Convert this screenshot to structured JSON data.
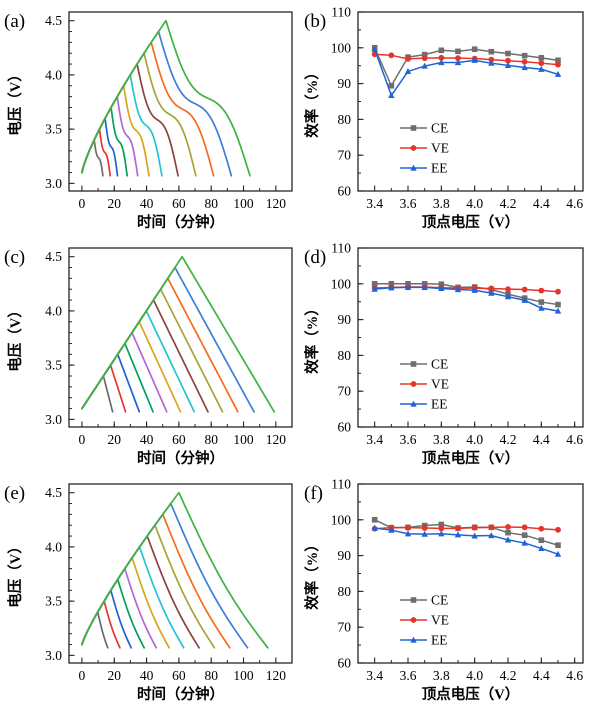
{
  "figure": {
    "background": "#ffffff",
    "spine_color": "#262626",
    "text_color": "#000000"
  },
  "chart_data": [
    {
      "id": "a",
      "type": "line",
      "kind": "voltage_time",
      "panel_label": "(a)",
      "xlabel": "时间（分钟）",
      "ylabel": "电压（V）",
      "xlim": [
        -8,
        130
      ],
      "ylim": [
        2.93,
        4.58
      ],
      "xticks": [
        0,
        20,
        40,
        60,
        80,
        100,
        120
      ],
      "xtick_labels": [
        "0",
        "20",
        "40",
        "60",
        "80",
        "100",
        "120"
      ],
      "yticks": [
        3.0,
        3.5,
        4.0,
        4.5
      ],
      "ytick_labels": [
        "3.0",
        "3.5",
        "4.0",
        "4.5"
      ],
      "x_minor_step": 10,
      "y_minor_step": 0.1,
      "start_voltage": 3.1,
      "cutoff_voltage": 3.07,
      "envelope": {
        "T": 52,
        "exp": 0.8
      },
      "discharge_shape": "s",
      "curves": [
        {
          "vertex": 3.4,
          "end_t": 13,
          "color": "#6b6b6b"
        },
        {
          "vertex": 3.5,
          "end_t": 17.5,
          "color": "#e5352b"
        },
        {
          "vertex": 3.6,
          "end_t": 22,
          "color": "#2261cf"
        },
        {
          "vertex": 3.7,
          "end_t": 28,
          "color": "#00a15d"
        },
        {
          "vertex": 3.8,
          "end_t": 34.5,
          "color": "#b466d9"
        },
        {
          "vertex": 3.9,
          "end_t": 41.5,
          "color": "#d9a51f"
        },
        {
          "vertex": 4.0,
          "end_t": 49.5,
          "color": "#22c4d4"
        },
        {
          "vertex": 4.1,
          "end_t": 59.5,
          "color": "#8b4242"
        },
        {
          "vertex": 4.2,
          "end_t": 70.5,
          "color": "#a8a335"
        },
        {
          "vertex": 4.3,
          "end_t": 81.5,
          "color": "#f66c1d"
        },
        {
          "vertex": 4.4,
          "end_t": 92.5,
          "color": "#3a7fdb"
        },
        {
          "vertex": 4.5,
          "end_t": 104,
          "color": "#3cb440"
        }
      ]
    },
    {
      "id": "b",
      "type": "line",
      "kind": "efficiency",
      "panel_label": "(b)",
      "xlabel": "顶点电压（V）",
      "ylabel": "效率（%）",
      "xlim": [
        3.3,
        4.65
      ],
      "ylim": [
        60,
        110
      ],
      "xticks": [
        3.4,
        3.6,
        3.8,
        4.0,
        4.2,
        4.4,
        4.6
      ],
      "xtick_labels": [
        "3.4",
        "3.6",
        "3.8",
        "4.0",
        "4.2",
        "4.4",
        "4.6"
      ],
      "yticks": [
        60,
        70,
        80,
        90,
        100,
        110
      ],
      "ytick_labels": [
        "60",
        "70",
        "80",
        "90",
        "100",
        "110"
      ],
      "x_minor_step": 0.1,
      "y_minor_step": 5,
      "x": [
        3.4,
        3.5,
        3.6,
        3.7,
        3.8,
        3.9,
        4.0,
        4.1,
        4.2,
        4.3,
        4.4,
        4.5
      ],
      "series": [
        {
          "name": "CE",
          "marker": "square",
          "color": "#6e6e6e",
          "values": [
            100.0,
            89.4,
            97.4,
            98.1,
            99.3,
            99.0,
            99.6,
            98.9,
            98.4,
            97.8,
            97.2,
            96.5
          ]
        },
        {
          "name": "VE",
          "marker": "circle",
          "color": "#e5352b",
          "values": [
            98.2,
            97.9,
            96.9,
            97.1,
            97.2,
            97.1,
            97.0,
            96.7,
            96.4,
            96.1,
            95.7,
            95.3
          ]
        },
        {
          "name": "EE",
          "marker": "triangle",
          "color": "#1f63d6",
          "values": [
            99.6,
            86.7,
            93.4,
            94.9,
            95.9,
            95.9,
            96.5,
            95.7,
            95.1,
            94.5,
            94.0,
            92.6
          ]
        }
      ],
      "legend": [
        "CE",
        "VE",
        "EE"
      ]
    },
    {
      "id": "c",
      "type": "line",
      "kind": "voltage_time",
      "panel_label": "(c)",
      "xlabel": "时间（分钟）",
      "ylabel": "电压（V）",
      "xlim": [
        -8,
        130
      ],
      "ylim": [
        2.93,
        4.58
      ],
      "xticks": [
        0,
        20,
        40,
        60,
        80,
        100,
        120
      ],
      "xtick_labels": [
        "0",
        "20",
        "40",
        "60",
        "80",
        "100",
        "120"
      ],
      "yticks": [
        3.0,
        3.5,
        4.0,
        4.5
      ],
      "ytick_labels": [
        "3.0",
        "3.5",
        "4.0",
        "4.5"
      ],
      "x_minor_step": 10,
      "y_minor_step": 0.1,
      "start_voltage": 3.1,
      "cutoff_voltage": 3.07,
      "envelope": {
        "T": 62,
        "exp": 1.0
      },
      "discharge_shape": "linear",
      "curves": [
        {
          "vertex": 3.4,
          "end_t": 19,
          "color": "#6b6b6b"
        },
        {
          "vertex": 3.5,
          "end_t": 27,
          "color": "#e5352b"
        },
        {
          "vertex": 3.6,
          "end_t": 35.5,
          "color": "#2261cf"
        },
        {
          "vertex": 3.7,
          "end_t": 44,
          "color": "#00a15d"
        },
        {
          "vertex": 3.8,
          "end_t": 52.5,
          "color": "#b466d9"
        },
        {
          "vertex": 3.9,
          "end_t": 61,
          "color": "#d9a51f"
        },
        {
          "vertex": 4.0,
          "end_t": 69.5,
          "color": "#22c4d4"
        },
        {
          "vertex": 4.1,
          "end_t": 78,
          "color": "#8b4242"
        },
        {
          "vertex": 4.2,
          "end_t": 87,
          "color": "#a8a335"
        },
        {
          "vertex": 4.3,
          "end_t": 96.5,
          "color": "#f66c1d"
        },
        {
          "vertex": 4.4,
          "end_t": 106.5,
          "color": "#3a7fdb"
        },
        {
          "vertex": 4.5,
          "end_t": 119,
          "color": "#3cb440"
        }
      ]
    },
    {
      "id": "d",
      "type": "line",
      "kind": "efficiency",
      "panel_label": "(d)",
      "xlabel": "顶点电压（V）",
      "ylabel": "效率（%）",
      "xlim": [
        3.3,
        4.65
      ],
      "ylim": [
        60,
        110
      ],
      "xticks": [
        3.4,
        3.6,
        3.8,
        4.0,
        4.2,
        4.4,
        4.6
      ],
      "xtick_labels": [
        "3.4",
        "3.6",
        "3.8",
        "4.0",
        "4.2",
        "4.4",
        "4.6"
      ],
      "yticks": [
        60,
        70,
        80,
        90,
        100,
        110
      ],
      "ytick_labels": [
        "60",
        "70",
        "80",
        "90",
        "100",
        "110"
      ],
      "x_minor_step": 0.1,
      "y_minor_step": 5,
      "x": [
        3.4,
        3.5,
        3.6,
        3.7,
        3.8,
        3.9,
        4.0,
        4.1,
        4.2,
        4.3,
        4.4,
        4.5
      ],
      "series": [
        {
          "name": "CE",
          "marker": "square",
          "color": "#6e6e6e",
          "values": [
            100.0,
            100.0,
            100.0,
            100.0,
            99.9,
            99.0,
            99.1,
            98.4,
            97.1,
            96.0,
            94.9,
            94.2
          ]
        },
        {
          "name": "VE",
          "marker": "circle",
          "color": "#e5352b",
          "values": [
            98.8,
            99.0,
            99.1,
            99.1,
            98.9,
            98.8,
            98.8,
            98.7,
            98.5,
            98.4,
            98.1,
            97.8
          ]
        },
        {
          "name": "EE",
          "marker": "triangle",
          "color": "#1f63d6",
          "values": [
            98.5,
            98.9,
            99.0,
            99.0,
            98.7,
            98.4,
            98.2,
            97.4,
            96.4,
            95.4,
            93.2,
            92.4
          ]
        }
      ],
      "legend": [
        "CE",
        "VE",
        "EE"
      ]
    },
    {
      "id": "e",
      "type": "line",
      "kind": "voltage_time",
      "panel_label": "(e)",
      "xlabel": "时间（分钟）",
      "ylabel": "电压（V）",
      "xlim": [
        -8,
        130
      ],
      "ylim": [
        2.93,
        4.58
      ],
      "xticks": [
        0,
        20,
        40,
        60,
        80,
        100,
        120
      ],
      "xtick_labels": [
        "0",
        "20",
        "40",
        "60",
        "80",
        "100",
        "120"
      ],
      "yticks": [
        3.0,
        3.5,
        4.0,
        4.5
      ],
      "ytick_labels": [
        "3.0",
        "3.5",
        "4.0",
        "4.5"
      ],
      "x_minor_step": 10,
      "y_minor_step": 0.1,
      "start_voltage": 3.1,
      "cutoff_voltage": 3.07,
      "envelope": {
        "T": 60,
        "exp": 0.85
      },
      "discharge_shape": "convex",
      "curves": [
        {
          "vertex": 3.4,
          "end_t": 16,
          "color": "#6b6b6b"
        },
        {
          "vertex": 3.5,
          "end_t": 23.5,
          "color": "#e5352b"
        },
        {
          "vertex": 3.6,
          "end_t": 30.5,
          "color": "#2261cf"
        },
        {
          "vertex": 3.7,
          "end_t": 38.5,
          "color": "#00a15d"
        },
        {
          "vertex": 3.8,
          "end_t": 46,
          "color": "#b466d9"
        },
        {
          "vertex": 3.9,
          "end_t": 54,
          "color": "#d9a51f"
        },
        {
          "vertex": 4.0,
          "end_t": 63,
          "color": "#22c4d4"
        },
        {
          "vertex": 4.1,
          "end_t": 72.5,
          "color": "#8b4242"
        },
        {
          "vertex": 4.2,
          "end_t": 82,
          "color": "#a8a335"
        },
        {
          "vertex": 4.3,
          "end_t": 91.5,
          "color": "#f66c1d"
        },
        {
          "vertex": 4.4,
          "end_t": 102.5,
          "color": "#3a7fdb"
        },
        {
          "vertex": 4.5,
          "end_t": 115,
          "color": "#3cb440"
        }
      ]
    },
    {
      "id": "f",
      "type": "line",
      "kind": "efficiency",
      "panel_label": "(f)",
      "xlabel": "顶点电压（V）",
      "ylabel": "效率（%）",
      "xlim": [
        3.3,
        4.65
      ],
      "ylim": [
        60,
        110
      ],
      "xticks": [
        3.4,
        3.6,
        3.8,
        4.0,
        4.2,
        4.4,
        4.6
      ],
      "xtick_labels": [
        "3.4",
        "3.6",
        "3.8",
        "4.0",
        "4.2",
        "4.4",
        "4.6"
      ],
      "yticks": [
        60,
        70,
        80,
        90,
        100,
        110
      ],
      "ytick_labels": [
        "60",
        "70",
        "80",
        "90",
        "100",
        "110"
      ],
      "x_minor_step": 0.1,
      "y_minor_step": 5,
      "x": [
        3.4,
        3.5,
        3.6,
        3.7,
        3.8,
        3.9,
        4.0,
        4.1,
        4.2,
        4.3,
        4.4,
        4.5
      ],
      "series": [
        {
          "name": "CE",
          "marker": "square",
          "color": "#6e6e6e",
          "values": [
            100.0,
            97.8,
            97.9,
            98.4,
            98.7,
            97.7,
            97.9,
            97.9,
            96.4,
            95.7,
            94.3,
            92.9
          ]
        },
        {
          "name": "VE",
          "marker": "circle",
          "color": "#e5352b",
          "values": [
            97.5,
            97.8,
            97.8,
            97.7,
            97.6,
            97.6,
            97.8,
            97.9,
            98.0,
            97.9,
            97.5,
            97.2
          ]
        },
        {
          "name": "EE",
          "marker": "triangle",
          "color": "#1f63d6",
          "values": [
            97.7,
            97.1,
            96.1,
            96.0,
            96.1,
            95.8,
            95.5,
            95.6,
            94.4,
            93.5,
            92.0,
            90.4
          ]
        }
      ],
      "legend": [
        "CE",
        "VE",
        "EE"
      ]
    }
  ]
}
